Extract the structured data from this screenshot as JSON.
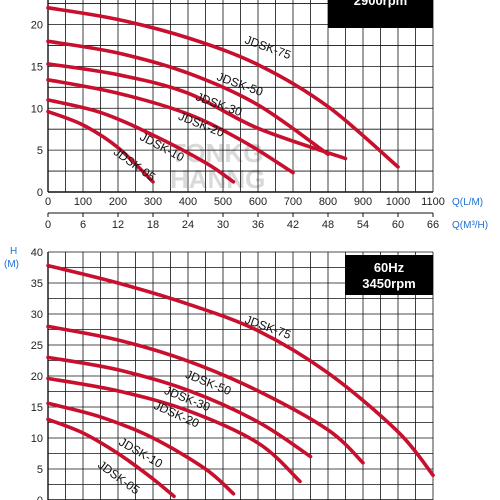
{
  "colors": {
    "curve": "#c8102e",
    "grid": "#111111",
    "unit": "#1e6fd6",
    "box": "#000000",
    "watermark": "#d0d0d0"
  },
  "watermark": {
    "line1": "TONKG",
    "line2": "HANNG"
  },
  "chart_data": [
    {
      "type": "line",
      "panel": "top",
      "badge": {
        "line1": "",
        "line2": "2900rpm"
      },
      "xlabel": "Q(L/M)",
      "x2label": "Q(M³/H)",
      "ylabel": "",
      "yunit": "",
      "xlim": [
        0,
        1100
      ],
      "ylim": [
        0,
        24
      ],
      "xticks": [
        0,
        100,
        200,
        300,
        400,
        500,
        600,
        700,
        800,
        900,
        1000,
        1100
      ],
      "x2ticks": [
        "0",
        "6",
        "12",
        "18",
        "24",
        "30",
        "36",
        "42",
        "48",
        "54",
        "60",
        "66"
      ],
      "yticks": [
        0,
        5,
        10,
        15,
        20
      ],
      "series": [
        {
          "name": "JDSK-75",
          "label_at": [
            560,
            17.8
          ],
          "label_angle": 20,
          "points": [
            [
              0,
              22
            ],
            [
              200,
              20.6
            ],
            [
              400,
              18.4
            ],
            [
              600,
              15.2
            ],
            [
              800,
              10.2
            ],
            [
              1000,
              3
            ]
          ]
        },
        {
          "name": "JDSK-50",
          "label_at": [
            480,
            13.4
          ],
          "label_angle": 20,
          "points": [
            [
              0,
              18
            ],
            [
              200,
              16.6
            ],
            [
              400,
              14.2
            ],
            [
              600,
              10.4
            ],
            [
              800,
              4.5
            ]
          ]
        },
        {
          "name": "JDSK-30",
          "label_at": [
            420,
            11.0
          ],
          "label_angle": 20,
          "points": [
            [
              0,
              15.3
            ],
            [
              200,
              14
            ],
            [
              400,
              11.8
            ],
            [
              600,
              7.6
            ],
            [
              850,
              4
            ]
          ]
        },
        {
          "name": "JDSK-20",
          "label_at": [
            370,
            8.7
          ],
          "label_angle": 22,
          "points": [
            [
              0,
              13.4
            ],
            [
              200,
              11.8
            ],
            [
              400,
              9.3
            ],
            [
              560,
              6
            ],
            [
              700,
              2.3
            ]
          ]
        },
        {
          "name": "JDSK-10",
          "label_at": [
            260,
            6.3
          ],
          "label_angle": 28,
          "points": [
            [
              0,
              11
            ],
            [
              150,
              9.5
            ],
            [
              300,
              6.8
            ],
            [
              450,
              3.5
            ],
            [
              530,
              1.2
            ]
          ]
        },
        {
          "name": "JDSK-05",
          "label_at": [
            185,
            4.6
          ],
          "label_angle": 36,
          "points": [
            [
              0,
              9.6
            ],
            [
              100,
              8
            ],
            [
              200,
              5.3
            ],
            [
              300,
              1.2
            ]
          ]
        }
      ]
    },
    {
      "type": "line",
      "panel": "bottom",
      "badge": {
        "line1": "60Hz",
        "line2": "3450rpm"
      },
      "xlabel": "",
      "x2label": "",
      "ylabel": "H",
      "yunit": "(M)",
      "xlim": [
        0,
        1100
      ],
      "ylim": [
        0,
        40
      ],
      "xticks": [],
      "x2ticks": [],
      "yticks": [
        0,
        5,
        10,
        15,
        20,
        25,
        30,
        35,
        40
      ],
      "series": [
        {
          "name": "JDSK-75",
          "label_at": [
            560,
            28.6
          ],
          "label_angle": 20,
          "points": [
            [
              0,
              37.8
            ],
            [
              200,
              35
            ],
            [
              400,
              31.6
            ],
            [
              600,
              27.3
            ],
            [
              800,
              20.5
            ],
            [
              1000,
              11
            ],
            [
              1100,
              4
            ]
          ]
        },
        {
          "name": "JDSK-50",
          "label_at": [
            390,
            19.8
          ],
          "label_angle": 22,
          "points": [
            [
              0,
              28
            ],
            [
              200,
              25.8
            ],
            [
              400,
              22.4
            ],
            [
              600,
              17.6
            ],
            [
              800,
              11.3
            ],
            [
              900,
              6
            ]
          ]
        },
        {
          "name": "JDSK-30",
          "label_at": [
            330,
            17.2
          ],
          "label_angle": 22,
          "points": [
            [
              0,
              23
            ],
            [
              200,
              21
            ],
            [
              400,
              17.7
            ],
            [
              600,
              12.6
            ],
            [
              750,
              7
            ]
          ]
        },
        {
          "name": "JDSK-20",
          "label_at": [
            300,
            14.8
          ],
          "label_angle": 24,
          "points": [
            [
              0,
              19.6
            ],
            [
              200,
              17.6
            ],
            [
              400,
              14.4
            ],
            [
              600,
              9.2
            ],
            [
              720,
              3
            ]
          ]
        },
        {
          "name": "JDSK-10",
          "label_at": [
            200,
            9.0
          ],
          "label_angle": 30,
          "points": [
            [
              0,
              15.6
            ],
            [
              150,
              13.4
            ],
            [
              300,
              10
            ],
            [
              450,
              5
            ],
            [
              530,
              1
            ]
          ]
        },
        {
          "name": "JDSK-05",
          "label_at": [
            140,
            5.4
          ],
          "label_angle": 36,
          "points": [
            [
              0,
              13
            ],
            [
              100,
              10.8
            ],
            [
              200,
              7.5
            ],
            [
              300,
              3.4
            ],
            [
              360,
              0.6
            ]
          ]
        }
      ]
    }
  ]
}
